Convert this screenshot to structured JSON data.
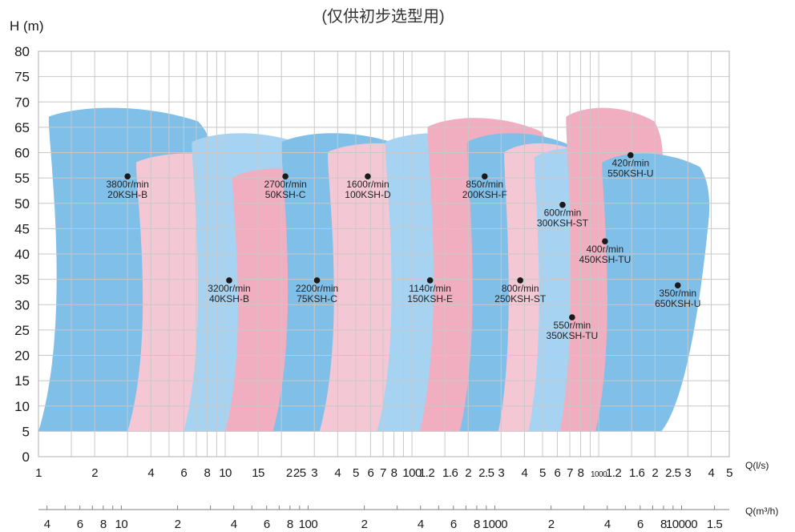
{
  "chart_data": {
    "type": "area",
    "title": "(仅供初步选型用)",
    "ylabel": "H (m)",
    "xlabel_ls": "Q(l/s)",
    "xlabel_m3h": "Q(m³/h)",
    "ylim": [
      0,
      80
    ],
    "yticks": [
      "0",
      "5",
      "10",
      "15",
      "20",
      "25",
      "30",
      "35",
      "40",
      "45",
      "50",
      "55",
      "60",
      "65",
      "70",
      "75",
      "80"
    ],
    "x_scale": "log",
    "xlim_ls": [
      1,
      5000
    ],
    "xticks_ls": [
      {
        "v": 1,
        "t": "1"
      },
      {
        "v": 2,
        "t": "2"
      },
      {
        "v": 4,
        "t": "4"
      },
      {
        "v": 6,
        "t": "6"
      },
      {
        "v": 8,
        "t": "8"
      },
      {
        "v": 10,
        "t": "10"
      },
      {
        "v": 15,
        "t": "15"
      },
      {
        "v": 22,
        "t": "2"
      },
      {
        "v": 25,
        "t": "25"
      },
      {
        "v": 30,
        "t": "3"
      },
      {
        "v": 40,
        "t": "4"
      },
      {
        "v": 50,
        "t": "5"
      },
      {
        "v": 60,
        "t": "6"
      },
      {
        "v": 70,
        "t": "7"
      },
      {
        "v": 80,
        "t": "8"
      },
      {
        "v": 100,
        "t": "100"
      },
      {
        "v": 120,
        "t": "1.2"
      },
      {
        "v": 160,
        "t": "1.6"
      },
      {
        "v": 200,
        "t": "2"
      },
      {
        "v": 250,
        "t": "2.5"
      },
      {
        "v": 300,
        "t": "3"
      },
      {
        "v": 400,
        "t": "4"
      },
      {
        "v": 500,
        "t": "5"
      },
      {
        "v": 600,
        "t": "6"
      },
      {
        "v": 700,
        "t": "7"
      },
      {
        "v": 800,
        "t": "8"
      },
      {
        "v": 1000,
        "t": "1000"
      },
      {
        "v": 1200,
        "t": "1.2"
      },
      {
        "v": 1600,
        "t": "1.6"
      },
      {
        "v": 2000,
        "t": "2"
      },
      {
        "v": 2500,
        "t": "2.5"
      },
      {
        "v": 3000,
        "t": "3"
      },
      {
        "v": 4000,
        "t": "4"
      },
      {
        "v": 5000,
        "t": "5"
      }
    ],
    "xticks_m3h": [
      {
        "v": 4,
        "t": "4"
      },
      {
        "v": 6,
        "t": "6"
      },
      {
        "v": 8,
        "t": "8"
      },
      {
        "v": 10,
        "t": "10"
      },
      {
        "v": 20,
        "t": "2"
      },
      {
        "v": 40,
        "t": "4"
      },
      {
        "v": 60,
        "t": "6"
      },
      {
        "v": 80,
        "t": "8"
      },
      {
        "v": 100,
        "t": "100"
      },
      {
        "v": 200,
        "t": "2"
      },
      {
        "v": 400,
        "t": "4"
      },
      {
        "v": 600,
        "t": "6"
      },
      {
        "v": 800,
        "t": "8"
      },
      {
        "v": 1000,
        "t": "1000"
      },
      {
        "v": 2000,
        "t": "2"
      },
      {
        "v": 4000,
        "t": "4"
      },
      {
        "v": 6000,
        "t": "6"
      },
      {
        "v": 8000,
        "t": "8"
      },
      {
        "v": 10000,
        "t": "10000"
      },
      {
        "v": 15000,
        "t": "1.5"
      }
    ],
    "grid": true,
    "colors": {
      "blue": "#7fbfe8",
      "lightblue": "#a6d3f2",
      "pink": "#f4c7d4",
      "rose": "#f0aec0",
      "grid": "#c8c8c8"
    },
    "series": [
      {
        "speed": "3800r/min",
        "model": "20KSH-B",
        "color": "blue",
        "hmin": 5,
        "hmax": 69,
        "qmin": 1,
        "qmax": 8.5,
        "pt": [
          3,
          55.3
        ]
      },
      {
        "speed": "3200r/min",
        "model": "40KSH-B",
        "color": "pink",
        "hmin": 5,
        "hmax": 60,
        "qmin": 3,
        "qmax": 18,
        "pt": [
          10.5,
          34.8
        ]
      },
      {
        "speed": "2700r/min",
        "model": "50KSH-C",
        "color": "lightblue",
        "hmin": 5,
        "hmax": 64,
        "qmin": 6,
        "qmax": 32,
        "pt": [
          21,
          55.3
        ]
      },
      {
        "speed": "2200r/min",
        "model": "75KSH-C",
        "color": "rose",
        "hmin": 5,
        "hmax": 57,
        "qmin": 10,
        "qmax": 45,
        "pt": [
          31,
          34.8
        ]
      },
      {
        "speed": "1600r/min",
        "model": "100KSH-D",
        "color": "blue",
        "hmin": 5,
        "hmax": 64,
        "qmin": 18,
        "qmax": 105,
        "pt": [
          58,
          55.3
        ]
      },
      {
        "speed": "1140r/min",
        "model": "150KSH-E",
        "color": "pink",
        "hmin": 5,
        "hmax": 62,
        "qmin": 32,
        "qmax": 175,
        "pt": [
          125,
          34.8
        ]
      },
      {
        "speed": "850r/min",
        "model": "200KSH-F",
        "color": "lightblue",
        "hmin": 5,
        "hmax": 64,
        "qmin": 65,
        "qmax": 360,
        "pt": [
          245,
          55.3
        ]
      },
      {
        "speed": "800r/min",
        "model": "250KSH-ST",
        "color": "rose",
        "hmin": 5,
        "hmax": 67,
        "qmin": 110,
        "qmax": 560,
        "pt": [
          380,
          34.8
        ]
      },
      {
        "speed": "600r/min",
        "model": "300KSH-ST",
        "color": "blue",
        "hmin": 5,
        "hmax": 64,
        "qmin": 180,
        "qmax": 830,
        "pt": [
          640,
          49.7
        ]
      },
      {
        "speed": "550r/min",
        "model": "350KSH-TU",
        "color": "pink",
        "hmin": 5,
        "hmax": 62,
        "qmin": 290,
        "qmax": 980,
        "pt": [
          720,
          27.5
        ]
      },
      {
        "speed": "400r/min",
        "model": "450KSH-TU",
        "color": "lightblue",
        "hmin": 5,
        "hmax": 61,
        "qmin": 420,
        "qmax": 1480,
        "pt": [
          1080,
          42.5
        ]
      },
      {
        "speed": "420r/min",
        "model": "550KSH-U",
        "color": "rose",
        "hmin": 5,
        "hmax": 69,
        "qmin": 620,
        "qmax": 2200,
        "pt": [
          1480,
          59.5
        ]
      },
      {
        "speed": "350r/min",
        "model": "650KSH-U",
        "color": "blue",
        "hmin": 5,
        "hmax": 60,
        "qmin": 960,
        "qmax": 3900,
        "pt": [
          2650,
          33.8
        ]
      }
    ]
  }
}
